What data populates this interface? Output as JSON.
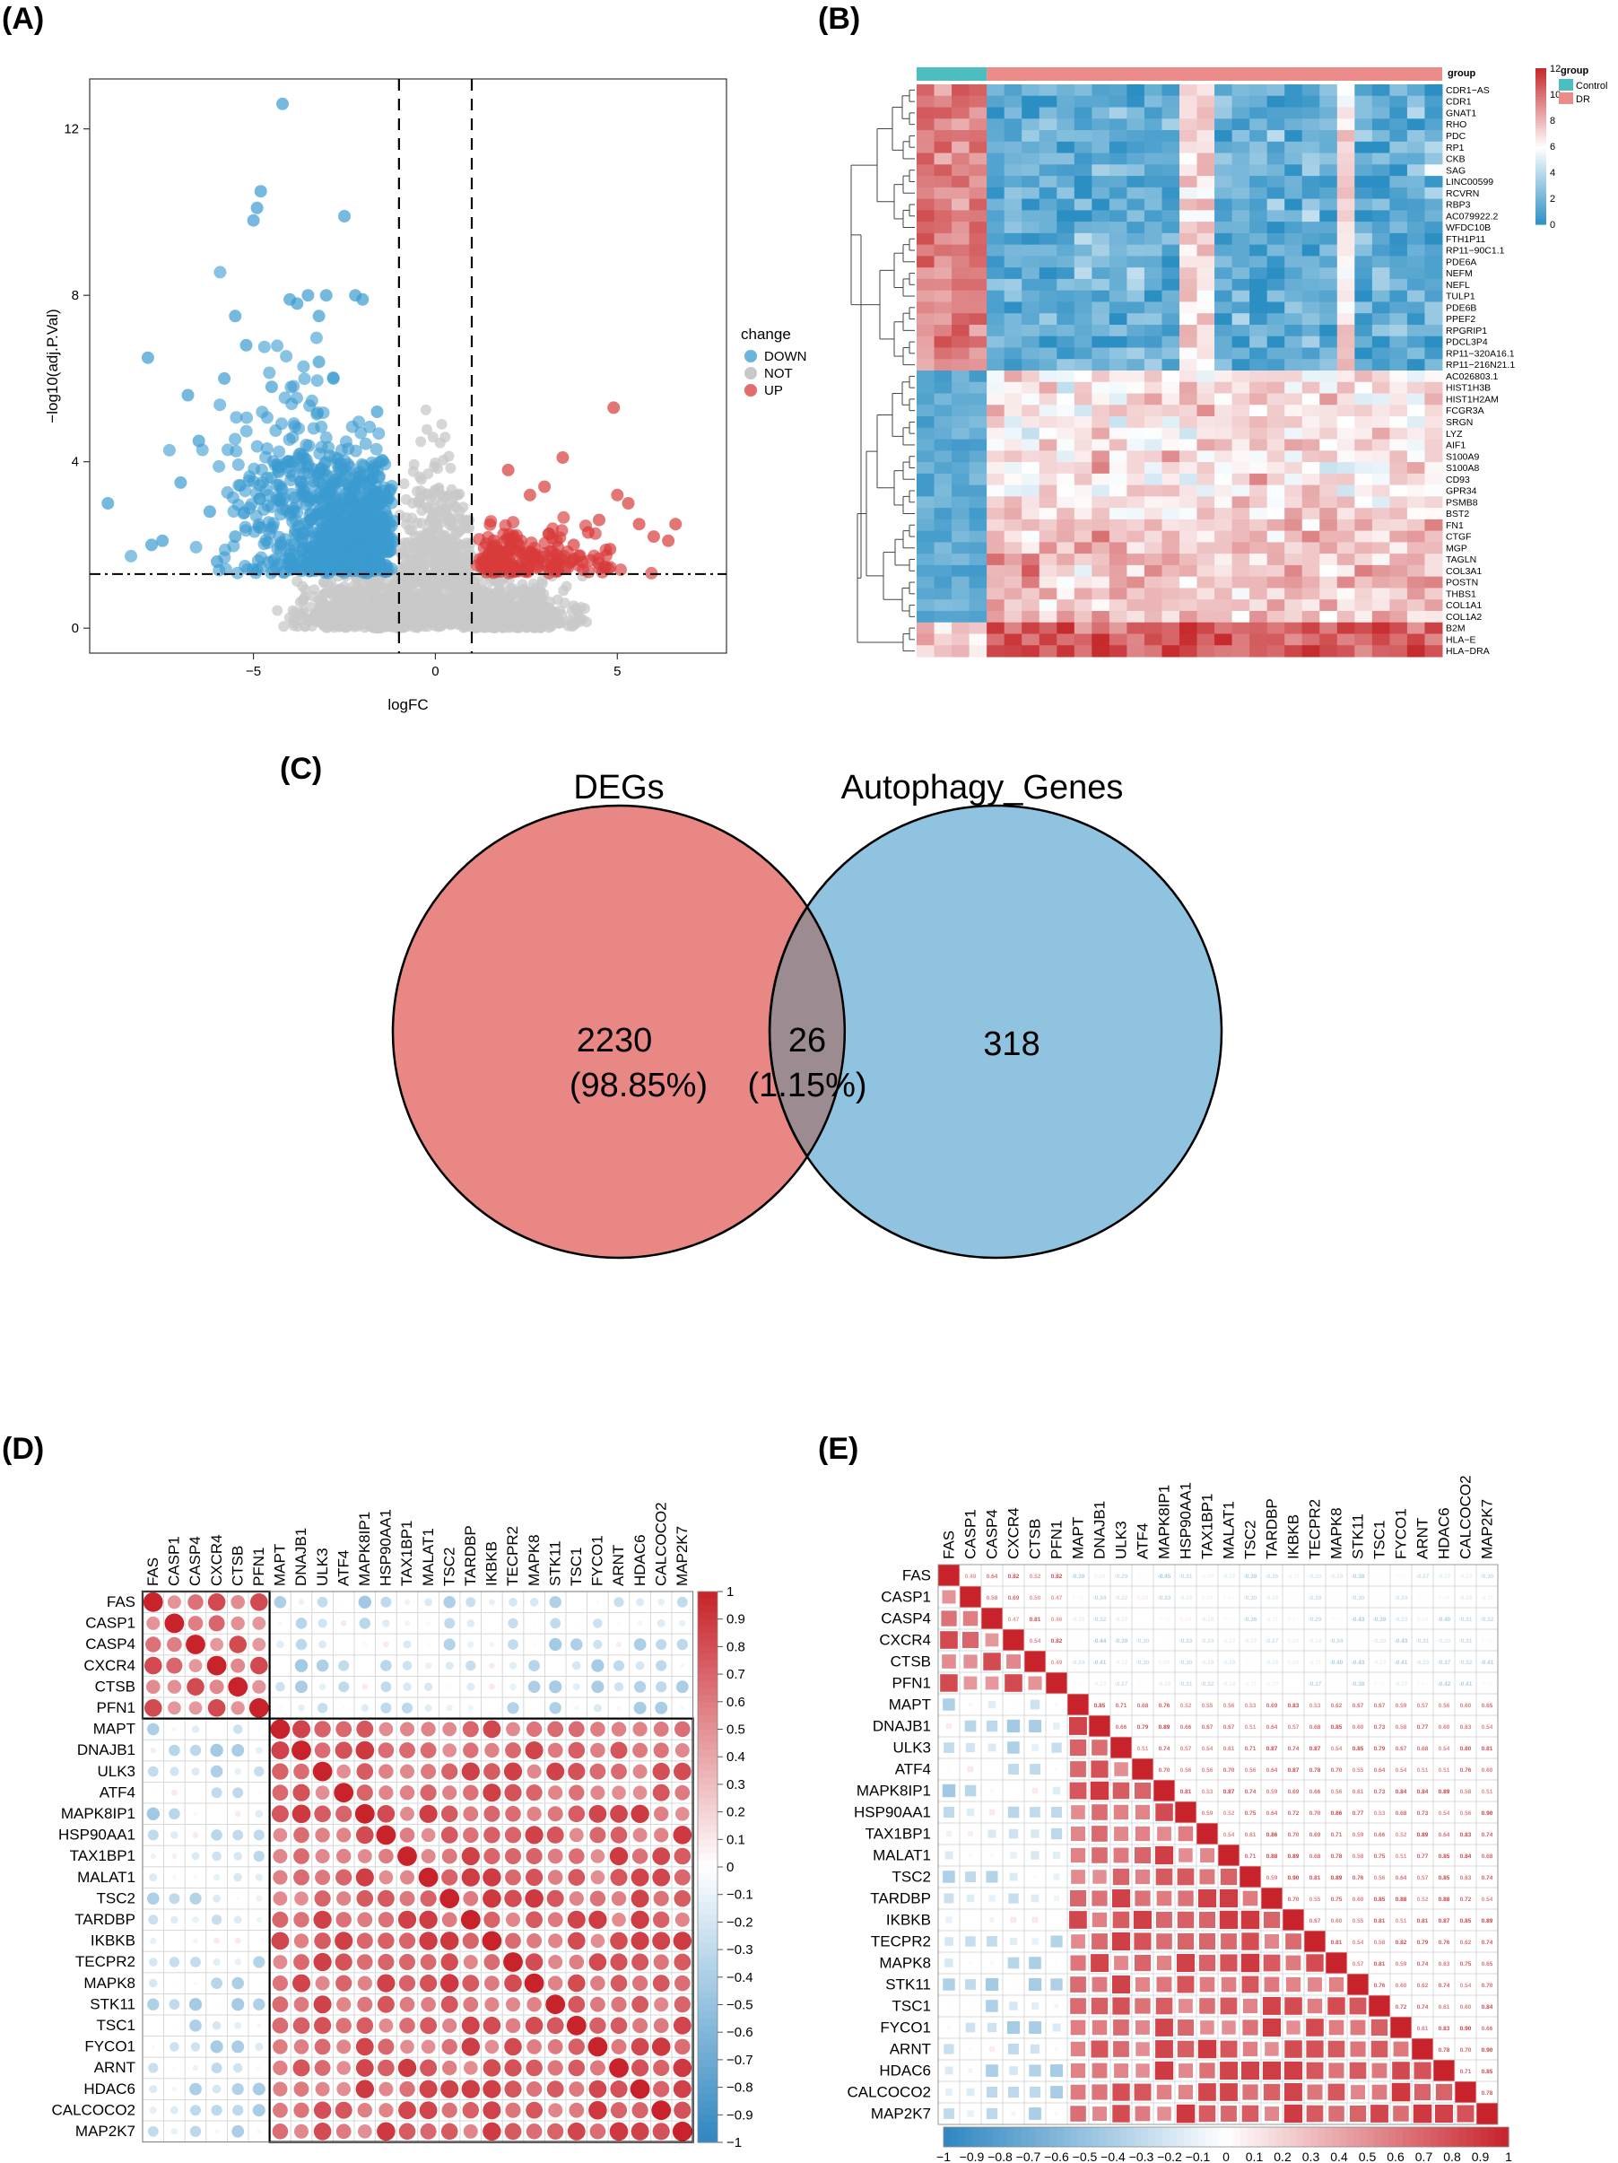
{
  "panel_labels": [
    "(A)",
    "(B)",
    "(C)",
    "(D)",
    "(E)"
  ],
  "colors": {
    "down": "#3a9bd0",
    "not": "#c8c8c8",
    "up": "#d93a3a",
    "control": "#4dbdc0",
    "dr": "#ec8c8a",
    "venn_left": "#e98785",
    "venn_right": "#8fc3df",
    "venn_overlap": "#9c8c92",
    "corr_pos": "#c8222a",
    "corr_neg": "#2e86c1"
  },
  "chart_data": [
    {
      "type": "scatter",
      "panel": "(A)",
      "title": "",
      "xlabel": "logFC",
      "ylabel": "−log10(adj.P.Val)",
      "xlim": [
        -9.5,
        8
      ],
      "ylim": [
        -0.6,
        13.2
      ],
      "x_ticks": [
        -5,
        0,
        5
      ],
      "x_tick_labels": [
        "−5",
        "0",
        "5"
      ],
      "y_ticks": [
        0,
        4,
        8,
        12
      ],
      "y_tick_labels": [
        "0",
        "4",
        "8",
        "12"
      ],
      "thresholds": {
        "logFC": [
          -1,
          1
        ],
        "neg_log10_p": 1.3
      },
      "legend": {
        "title": "change",
        "entries": [
          "DOWN",
          "NOT",
          "UP"
        ],
        "position": "right"
      },
      "series": [
        {
          "name": "DOWN",
          "points": [
            [
              -9,
              3.0
            ],
            [
              -7.8,
              2.0
            ],
            [
              -7.5,
              2.1
            ],
            [
              -7.9,
              6.5
            ],
            [
              -6.8,
              5.6
            ],
            [
              -6.5,
              4.5
            ],
            [
              -6.2,
              2.8
            ],
            [
              -5.8,
              6.0
            ],
            [
              -5.5,
              7.5
            ],
            [
              -5.2,
              6.8
            ],
            [
              -5.0,
              9.8
            ],
            [
              -4.9,
              10.1
            ],
            [
              -4.8,
              10.5
            ],
            [
              -4.5,
              5.8
            ],
            [
              -4.2,
              12.6
            ],
            [
              -4.0,
              7.9
            ],
            [
              -3.8,
              7.8
            ],
            [
              -3.5,
              8.0
            ],
            [
              -3.2,
              7.5
            ],
            [
              -3.0,
              8.0
            ],
            [
              -2.5,
              9.9
            ],
            [
              -2.2,
              8.0
            ],
            [
              -2.0,
              7.9
            ],
            [
              -4.9,
              1.4
            ],
            [
              -6.0,
              1.6
            ],
            [
              -7.0,
              3.5
            ],
            [
              -5.5,
              2.2
            ],
            [
              -3.2,
              6.4
            ],
            [
              -2.8,
              6.0
            ],
            [
              -1.6,
              5.2
            ],
            [
              -1.4,
              3.2
            ]
          ]
        },
        {
          "name": "UP",
          "points": [
            [
              1.3,
              1.6
            ],
            [
              1.6,
              2.1
            ],
            [
              2.0,
              3.8
            ],
            [
              2.6,
              3.2
            ],
            [
              3.0,
              3.4
            ],
            [
              3.5,
              4.1
            ],
            [
              4.2,
              2.3
            ],
            [
              4.5,
              2.6
            ],
            [
              4.8,
              1.9
            ],
            [
              4.9,
              5.3
            ],
            [
              5.3,
              3.0
            ],
            [
              5.6,
              2.5
            ],
            [
              6.0,
              2.2
            ],
            [
              6.4,
              2.1
            ],
            [
              6.6,
              2.5
            ],
            [
              2.4,
              1.8
            ],
            [
              3.8,
              2.0
            ],
            [
              5.0,
              3.2
            ]
          ]
        }
      ]
    },
    {
      "type": "heatmap",
      "panel": "(B)",
      "title": "",
      "group_label": "group",
      "groups": [
        "Control",
        "DR"
      ],
      "n_control": 4,
      "n_dr": 26,
      "colorbar_ticks": [
        0,
        2,
        4,
        6,
        8,
        10,
        12
      ],
      "colorbar_tick_labels": [
        "0",
        "2",
        "4",
        "6",
        "8",
        "10",
        "12"
      ],
      "genes": [
        "CDR1−AS",
        "CDR1",
        "GNAT1",
        "RHO",
        "PDC",
        "RP1",
        "CKB",
        "SAG",
        "LINC00599",
        "RCVRN",
        "RBP3",
        "AC079922.2",
        "WFDC10B",
        "FTH1P11",
        "RP11−90C1.1",
        "PDE6A",
        "NEFM",
        "NEFL",
        "TULP1",
        "PDE6B",
        "PPEF2",
        "RPGRIP1",
        "PDCL3P4",
        "RP11−320A16.1",
        "RP11−216N21.1",
        "AC026803.1",
        "HIST1H3B",
        "HIST1H2AM",
        "FCGR3A",
        "SRGN",
        "LYZ",
        "AIF1",
        "S100A9",
        "S100A8",
        "CD93",
        "GPR34",
        "PSMB8",
        "BST2",
        "FN1",
        "CTGF",
        "MGP",
        "TAGLN",
        "COL3A1",
        "POSTN",
        "THBS1",
        "COL1A1",
        "COL1A2",
        "B2M",
        "HLA−E",
        "HLA−DRA"
      ]
    },
    {
      "type": "venn",
      "panel": "(C)",
      "sets": [
        "DEGs",
        "Autophagy_Genes"
      ],
      "left_only": {
        "count": "2230",
        "pct": "(98.85%)"
      },
      "overlap": {
        "count": "26",
        "pct": "(1.15%)"
      },
      "right_only": {
        "count": "318"
      }
    },
    {
      "type": "heatmap",
      "panel": "(D)",
      "style": "correlation-circles",
      "genes": [
        "FAS",
        "CASP1",
        "CASP4",
        "CXCR4",
        "CTSB",
        "PFN1",
        "MAPT",
        "DNAJB1",
        "ULK3",
        "ATF4",
        "MAPK8IP1",
        "HSP90AA1",
        "TAX1BP1",
        "MALAT1",
        "TSC2",
        "TARDBP",
        "IKBKB",
        "TECPR2",
        "MAPK8",
        "STK11",
        "TSC1",
        "FYCO1",
        "ARNT",
        "HDAC6",
        "CALCOCO2",
        "MAP2K7"
      ],
      "clusters": [
        [
          "FAS",
          "PFN1"
        ],
        [
          "MAPT",
          "MAP2K7"
        ]
      ],
      "colorbar_ticks": [
        1,
        0.9,
        0.8,
        0.7,
        0.6,
        0.5,
        0.4,
        0.3,
        0.2,
        0.1,
        0,
        -0.1,
        -0.2,
        -0.3,
        -0.4,
        -0.5,
        -0.6,
        -0.7,
        -0.8,
        -0.9,
        -1
      ],
      "colorbar_tick_labels": [
        "1",
        "0.9",
        "0.8",
        "0.7",
        "0.6",
        "0.5",
        "0.4",
        "0.3",
        "0.2",
        "0.1",
        "0",
        "−0.1",
        "−0.2",
        "−0.3",
        "−0.4",
        "−0.5",
        "−0.6",
        "−0.7",
        "−0.8",
        "−0.9",
        "−1"
      ]
    },
    {
      "type": "heatmap",
      "panel": "(E)",
      "style": "correlation-mixed",
      "genes": [
        "FAS",
        "CASP1",
        "CASP4",
        "CXCR4",
        "CTSB",
        "PFN1",
        "MAPT",
        "DNAJB1",
        "ULK3",
        "ATF4",
        "MAPK8IP1",
        "HSP90AA1",
        "TAX1BP1",
        "MALAT1",
        "TSC2",
        "TARDBP",
        "IKBKB",
        "TECPR2",
        "MAPK8",
        "STK11",
        "TSC1",
        "FYCO1",
        "ARNT",
        "HDAC6",
        "CALCOCO2",
        "MAP2K7"
      ],
      "colorbar_ticks": [
        -1,
        -0.9,
        -0.8,
        -0.7,
        -0.6,
        -0.5,
        -0.4,
        -0.3,
        -0.2,
        -0.1,
        0,
        0.1,
        0.2,
        0.3,
        0.4,
        0.5,
        0.6,
        0.7,
        0.8,
        0.9,
        1
      ],
      "colorbar_tick_labels": [
        "−1",
        "−0.9",
        "−0.8",
        "−0.7",
        "−0.6",
        "−0.5",
        "−0.4",
        "−0.3",
        "−0.2",
        "−0.1",
        "0",
        "0.1",
        "0.2",
        "0.3",
        "0.4",
        "0.5",
        "0.6",
        "0.7",
        "0.8",
        "0.9",
        "1"
      ]
    }
  ]
}
